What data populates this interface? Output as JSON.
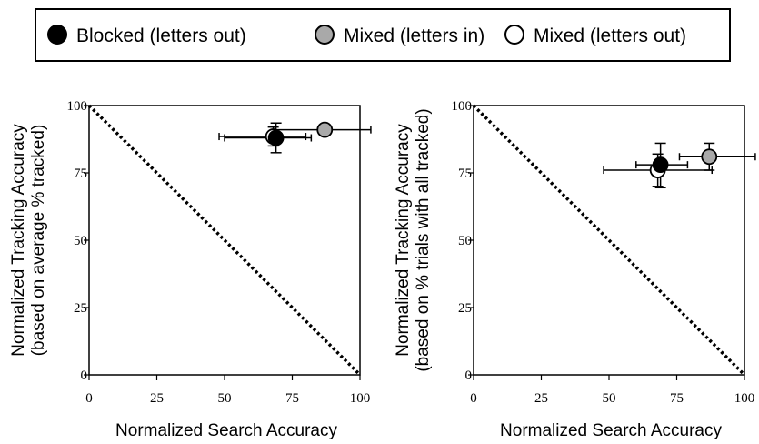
{
  "legend": {
    "position": "top-center",
    "entries": [
      {
        "label": "Blocked (letters out)",
        "marker_fill": "#000000"
      },
      {
        "label": "Mixed (letters in)",
        "marker_fill": "#a9a9a9"
      },
      {
        "label": "Mixed (letters out)",
        "marker_fill": "#ffffff"
      }
    ]
  },
  "chart_data": [
    {
      "type": "scatter",
      "title": "",
      "xlabel": "Normalized Search Accuracy",
      "ylabel_lines": [
        "Normalized Tracking Accuracy",
        "(based on average % tracked)"
      ],
      "xlim": [
        0,
        100
      ],
      "ylim": [
        0,
        100
      ],
      "xticks": [
        0,
        25,
        50,
        75,
        100
      ],
      "yticks": [
        0,
        25,
        50,
        75,
        100
      ],
      "grid": false,
      "reference_line": {
        "style": "dotted",
        "points": [
          [
            0,
            100
          ],
          [
            100,
            0
          ]
        ]
      },
      "series": [
        {
          "name": "Mixed (letters out)",
          "fill": "#ffffff",
          "x": 68,
          "y": 88.5,
          "x_err": [
            48,
            80
          ],
          "y_err": [
            85,
            92
          ]
        },
        {
          "name": "Mixed (letters in)",
          "fill": "#a9a9a9",
          "x": 87,
          "y": 91,
          "x_err": [
            68,
            104
          ],
          "y_err": [
            91,
            91
          ]
        },
        {
          "name": "Blocked (letters out)",
          "fill": "#000000",
          "x": 69,
          "y": 88,
          "x_err": [
            50,
            82
          ],
          "y_err": [
            82.5,
            93.5
          ]
        }
      ]
    },
    {
      "type": "scatter",
      "title": "",
      "xlabel": "Normalized Search Accuracy",
      "ylabel_lines": [
        "Normalized Tracking Accuracy",
        "(based on % trials with all tracked)"
      ],
      "xlim": [
        0,
        100
      ],
      "ylim": [
        0,
        100
      ],
      "xticks": [
        0,
        25,
        50,
        75,
        100
      ],
      "yticks": [
        0,
        25,
        50,
        75,
        100
      ],
      "grid": false,
      "reference_line": {
        "style": "dotted",
        "points": [
          [
            0,
            100
          ],
          [
            100,
            0
          ]
        ]
      },
      "series": [
        {
          "name": "Mixed (letters out)",
          "fill": "#ffffff",
          "x": 68,
          "y": 76,
          "x_err": [
            48,
            88
          ],
          "y_err": [
            70,
            82
          ]
        },
        {
          "name": "Blocked (letters out)",
          "fill": "#000000",
          "x": 69,
          "y": 78,
          "x_err": [
            60,
            79
          ],
          "y_err": [
            69.5,
            86
          ]
        },
        {
          "name": "Mixed (letters in)",
          "fill": "#a9a9a9",
          "x": 87,
          "y": 81,
          "x_err": [
            76,
            104
          ],
          "y_err": [
            76,
            86
          ]
        }
      ]
    }
  ]
}
